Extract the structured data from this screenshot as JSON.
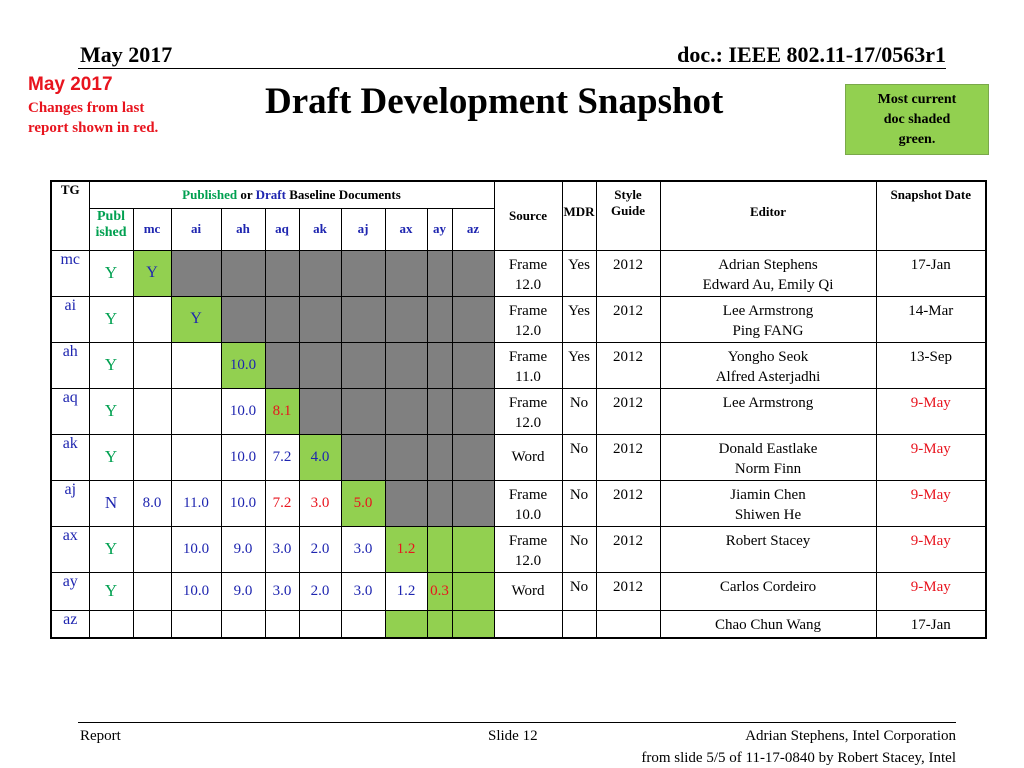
{
  "header": {
    "date": "May 2017",
    "doc": "doc.: IEEE 802.11-17/0563r1"
  },
  "note": {
    "date": "May 2017",
    "line1": "Changes from  last",
    "line2": "report shown in red."
  },
  "title": "Draft Development Snapshot",
  "legend_box": {
    "line1": "Most current",
    "line2": "doc shaded",
    "line3": "green."
  },
  "table": {
    "hdr_tg": "TG",
    "hdr_published": "Published",
    "hdr_or": " or ",
    "hdr_draft": "Draft",
    "hdr_baseline": " Baseline Documents",
    "hdr_mdr": "MDR",
    "hdr_style1": "Style",
    "hdr_style2": "Guide",
    "hdr_editor": "Editor",
    "hdr_snapshot": "Snapshot Date",
    "hdr_source": "Source",
    "hdr_publ1": "Publ",
    "hdr_publ2": "ished",
    "cols": [
      "mc",
      "ai",
      "ah",
      "aq",
      "ak",
      "aj",
      "ax",
      "ay",
      "az"
    ],
    "rows": [
      {
        "tg": "mc",
        "pub": "Y",
        "cells": [
          {
            "v": "Y",
            "bg": "green",
            "c": "blue"
          },
          {
            "v": "",
            "bg": "gray"
          },
          {
            "v": "",
            "bg": "gray"
          },
          {
            "v": "",
            "bg": "gray"
          },
          {
            "v": "",
            "bg": "gray"
          },
          {
            "v": "",
            "bg": "gray"
          },
          {
            "v": "",
            "bg": "gray"
          },
          {
            "v": "",
            "bg": "gray"
          },
          {
            "v": "",
            "bg": "gray"
          }
        ],
        "src1": "Frame",
        "src2": "12.0",
        "mdr": "Yes",
        "style": "2012",
        "ed1": "Adrian Stephens",
        "ed2": "Edward Au, Emily Qi",
        "date": "17-Jan",
        "date_red": false
      },
      {
        "tg": "ai",
        "pub": "Y",
        "cells": [
          {
            "v": ""
          },
          {
            "v": "Y",
            "bg": "green",
            "c": "blue"
          },
          {
            "v": "",
            "bg": "gray"
          },
          {
            "v": "",
            "bg": "gray"
          },
          {
            "v": "",
            "bg": "gray"
          },
          {
            "v": "",
            "bg": "gray"
          },
          {
            "v": "",
            "bg": "gray"
          },
          {
            "v": "",
            "bg": "gray"
          },
          {
            "v": "",
            "bg": "gray"
          }
        ],
        "src1": "Frame",
        "src2": "12.0",
        "mdr": "Yes",
        "style": "2012",
        "ed1": "Lee Armstrong",
        "ed2": "Ping FANG",
        "date": "14-Mar",
        "date_red": false
      },
      {
        "tg": "ah",
        "pub": "Y",
        "cells": [
          {
            "v": ""
          },
          {
            "v": ""
          },
          {
            "v": "10.0",
            "bg": "green",
            "c": "blue"
          },
          {
            "v": "",
            "bg": "gray"
          },
          {
            "v": "",
            "bg": "gray"
          },
          {
            "v": "",
            "bg": "gray"
          },
          {
            "v": "",
            "bg": "gray"
          },
          {
            "v": "",
            "bg": "gray"
          },
          {
            "v": "",
            "bg": "gray"
          }
        ],
        "src1": "Frame",
        "src2": "11.0",
        "mdr": "Yes",
        "style": "2012",
        "ed1": "Yongho Seok",
        "ed2": "Alfred Asterjadhi",
        "date": "13-Sep",
        "date_red": false
      },
      {
        "tg": "aq",
        "pub": "Y",
        "cells": [
          {
            "v": ""
          },
          {
            "v": ""
          },
          {
            "v": "10.0",
            "c": "blue"
          },
          {
            "v": "8.1",
            "bg": "green",
            "c": "red"
          },
          {
            "v": "",
            "bg": "gray"
          },
          {
            "v": "",
            "bg": "gray"
          },
          {
            "v": "",
            "bg": "gray"
          },
          {
            "v": "",
            "bg": "gray"
          },
          {
            "v": "",
            "bg": "gray"
          }
        ],
        "src1": "Frame",
        "src2": "12.0",
        "mdr": "No",
        "style": "2012",
        "ed1": "Lee Armstrong",
        "ed2": "",
        "date": "9-May",
        "date_red": true
      },
      {
        "tg": "ak",
        "pub": "Y",
        "cells": [
          {
            "v": ""
          },
          {
            "v": ""
          },
          {
            "v": "10.0",
            "c": "blue"
          },
          {
            "v": "7.2",
            "c": "blue"
          },
          {
            "v": "4.0",
            "bg": "green",
            "c": "blue"
          },
          {
            "v": "",
            "bg": "gray"
          },
          {
            "v": "",
            "bg": "gray"
          },
          {
            "v": "",
            "bg": "gray"
          },
          {
            "v": "",
            "bg": "gray"
          }
        ],
        "src1": "",
        "src2": "Word",
        "mdr": "No",
        "style": "2012",
        "ed1": "Donald Eastlake",
        "ed2": "Norm Finn",
        "date": "9-May",
        "date_red": true
      },
      {
        "tg": "aj",
        "pub": "N",
        "cells": [
          {
            "v": "8.0",
            "c": "blue"
          },
          {
            "v": "11.0",
            "c": "blue"
          },
          {
            "v": "10.0",
            "c": "blue"
          },
          {
            "v": "7.2",
            "c": "red"
          },
          {
            "v": "3.0",
            "c": "red"
          },
          {
            "v": "5.0",
            "bg": "green",
            "c": "red"
          },
          {
            "v": "",
            "bg": "gray"
          },
          {
            "v": "",
            "bg": "gray"
          },
          {
            "v": "",
            "bg": "gray"
          }
        ],
        "src1": "Frame",
        "src2": "10.0",
        "mdr": "No",
        "style": "2012",
        "ed1": "Jiamin Chen",
        "ed2": "Shiwen He",
        "date": "9-May",
        "date_red": true
      },
      {
        "tg": "ax",
        "pub": "Y",
        "cells": [
          {
            "v": ""
          },
          {
            "v": "10.0",
            "c": "blue"
          },
          {
            "v": "9.0",
            "c": "blue"
          },
          {
            "v": "3.0",
            "c": "blue"
          },
          {
            "v": "2.0",
            "c": "blue"
          },
          {
            "v": "3.0",
            "c": "blue"
          },
          {
            "v": "1.2",
            "bg": "green",
            "c": "red"
          },
          {
            "v": "",
            "bg": "green"
          },
          {
            "v": "",
            "bg": "green"
          }
        ],
        "src1": "Frame",
        "src2": "12.0",
        "mdr": "No",
        "style": "2012",
        "ed1": "Robert Stacey",
        "ed2": "",
        "date": "9-May",
        "date_red": true
      },
      {
        "tg": "ay",
        "pub": "Y",
        "cells": [
          {
            "v": ""
          },
          {
            "v": "10.0",
            "c": "blue"
          },
          {
            "v": "9.0",
            "c": "blue"
          },
          {
            "v": "3.0",
            "c": "blue"
          },
          {
            "v": "2.0",
            "c": "blue"
          },
          {
            "v": "3.0",
            "c": "blue"
          },
          {
            "v": "1.2",
            "c": "blue"
          },
          {
            "v": "0.3",
            "bg": "green",
            "c": "red"
          },
          {
            "v": "",
            "bg": "green"
          }
        ],
        "src1": "",
        "src2": "Word",
        "mdr": "No",
        "style": "2012",
        "ed1": "Carlos Cordeiro",
        "ed2": "",
        "date": "9-May",
        "date_red": true
      },
      {
        "tg": "az",
        "pub": "",
        "cells": [
          {
            "v": ""
          },
          {
            "v": ""
          },
          {
            "v": ""
          },
          {
            "v": ""
          },
          {
            "v": ""
          },
          {
            "v": ""
          },
          {
            "v": "",
            "bg": "green"
          },
          {
            "v": "",
            "bg": "green"
          },
          {
            "v": "",
            "bg": "green"
          }
        ],
        "src1": "",
        "src2": "",
        "mdr": "",
        "style": "",
        "ed1": "Chao Chun Wang",
        "ed2": "",
        "date": "17-Jan",
        "date_red": false
      }
    ]
  },
  "footer": {
    "left": "Report",
    "slide": "Slide 12",
    "right": "Adrian Stephens, Intel Corporation",
    "source": "from slide 5/5 of 11-17-0840 by Robert Stacey, Intel"
  }
}
